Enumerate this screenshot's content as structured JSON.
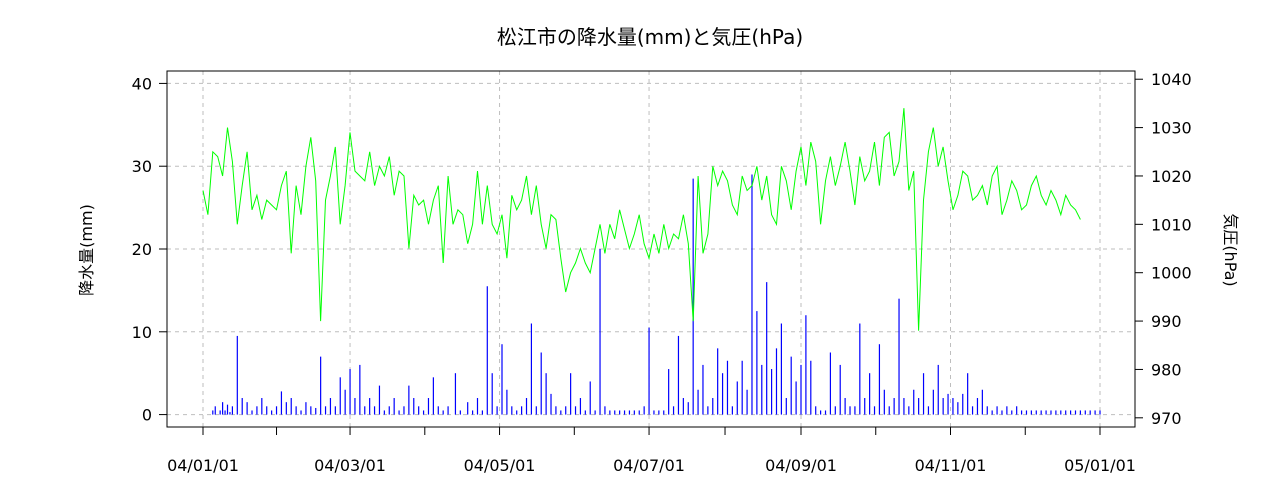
{
  "chart_data": {
    "type": "bar+line",
    "title": "松江市の降水量(mm)と気圧(hPa)",
    "ylabel_left": "降水量(mm)",
    "ylabel_right": "気圧(hPa)",
    "xlabel": "",
    "x_ticks": [
      "04/01/01",
      "04/03/01",
      "04/05/01",
      "04/07/01",
      "04/09/01",
      "04/11/01",
      "05/01/01"
    ],
    "x_range": [
      "2004-01-01",
      "2005-01-01"
    ],
    "y_left_ticks": [
      "0",
      "10",
      "20",
      "30",
      "40"
    ],
    "y_left_range": [
      -1.5,
      41.5
    ],
    "y_right_ticks": [
      "970",
      "980",
      "990",
      "1000",
      "1010",
      "1020",
      "1030",
      "1040"
    ],
    "y_right_range": [
      968.1,
      1041.7
    ],
    "grid": true,
    "colors": {
      "precipitation": "#0000ff",
      "pressure": "#00ff00",
      "grid": "#bebebe",
      "axis": "#000000"
    },
    "series": [
      {
        "type": "bar",
        "axis": "left",
        "day": [
          4,
          5,
          7,
          8,
          9,
          10,
          11,
          12,
          14,
          16,
          18,
          20,
          22,
          24,
          26,
          28,
          30,
          32,
          34,
          36,
          38,
          40,
          42,
          44,
          46,
          48,
          50,
          52,
          54,
          56,
          58,
          60,
          62,
          64,
          66,
          68,
          70,
          72,
          74,
          76,
          78,
          80,
          82,
          84,
          86,
          88,
          90,
          92,
          94,
          96,
          98,
          100,
          103,
          105,
          108,
          110,
          112,
          114,
          116,
          118,
          120,
          122,
          124,
          126,
          128,
          130,
          132,
          134,
          136,
          138,
          140,
          142,
          144,
          146,
          148,
          150,
          152,
          154,
          156,
          158,
          160,
          162,
          164,
          166,
          168,
          170,
          172,
          174,
          176,
          178,
          180,
          182,
          184,
          186,
          188,
          190,
          192,
          194,
          196,
          198,
          200,
          202,
          204,
          206,
          208,
          210,
          212,
          214,
          216,
          218,
          220,
          222,
          224,
          226,
          228,
          230,
          232,
          234,
          236,
          238,
          240,
          242,
          244,
          246,
          248,
          250,
          252,
          254,
          256,
          258,
          260,
          262,
          264,
          266,
          268,
          270,
          272,
          274,
          276,
          278,
          280,
          282,
          284,
          286,
          288,
          290,
          292,
          294,
          296,
          298,
          300,
          302,
          304,
          306,
          308,
          310,
          312,
          314,
          316,
          318,
          320,
          322,
          324,
          326,
          328,
          330,
          332,
          334,
          336,
          338,
          340,
          342,
          344,
          346,
          348,
          350,
          352,
          354,
          356,
          358,
          360,
          362,
          364,
          366
        ],
        "values": [
          0.5,
          1,
          0.5,
          1.5,
          0.5,
          1.2,
          0.3,
          1,
          9.5,
          2,
          1.5,
          0.5,
          1,
          2,
          1,
          0.5,
          1,
          2.8,
          1.5,
          2,
          1,
          0.5,
          1.5,
          1,
          0.8,
          7,
          1,
          2,
          1,
          4.5,
          3,
          5.5,
          2,
          6,
          1,
          2,
          1,
          3.5,
          0.5,
          1,
          2,
          0.5,
          1,
          3.5,
          2,
          1,
          0.5,
          2,
          4.5,
          1,
          0.5,
          1,
          5,
          0.5,
          1.5,
          0.5,
          2,
          0.5,
          15.5,
          5,
          1,
          8.5,
          3,
          1,
          0.5,
          1,
          2,
          11,
          1,
          7.5,
          5,
          2.5,
          1,
          0.5,
          1,
          5,
          1,
          2,
          0.5,
          4,
          0.5,
          20,
          1,
          0.5,
          0.5,
          0.5,
          0.5,
          0.5,
          0.5,
          0.5,
          1,
          10.5,
          0.5,
          0.5,
          0.5,
          5.5,
          1,
          9.5,
          2,
          1.5,
          28.5,
          3,
          6,
          1,
          2,
          8,
          5,
          6.5,
          1,
          4,
          6.5,
          3,
          29,
          12.5,
          6,
          16,
          5.5,
          8,
          11,
          2,
          7,
          4,
          6,
          12,
          6.5,
          1,
          0.5,
          0.5,
          7.5,
          1,
          6,
          2,
          1,
          1,
          11,
          2,
          5,
          1,
          8.5,
          3,
          1,
          2,
          14,
          2,
          1,
          3,
          2,
          5,
          1,
          3,
          6,
          2,
          2.5,
          2,
          1.5,
          2.5,
          5,
          1,
          2,
          3,
          1,
          0.5,
          1,
          0.5,
          1,
          0.5,
          1,
          0.5,
          0.5,
          0.5,
          0.5,
          0.5,
          0.5,
          0.5,
          0.5,
          0.5,
          0.5,
          0.5,
          0.5,
          0.5,
          0.5,
          0.5,
          0.5,
          0.5,
          0.5
        ]
      },
      {
        "type": "line",
        "axis": "right",
        "day": [
          0,
          2,
          4,
          6,
          8,
          10,
          12,
          14,
          16,
          18,
          20,
          22,
          24,
          26,
          28,
          30,
          32,
          34,
          36,
          38,
          40,
          42,
          44,
          46,
          48,
          50,
          52,
          54,
          56,
          58,
          60,
          62,
          64,
          66,
          68,
          70,
          72,
          74,
          76,
          78,
          80,
          82,
          84,
          86,
          88,
          90,
          92,
          94,
          96,
          98,
          100,
          102,
          104,
          106,
          108,
          110,
          112,
          114,
          116,
          118,
          120,
          122,
          124,
          126,
          128,
          130,
          132,
          134,
          136,
          138,
          140,
          142,
          144,
          146,
          148,
          150,
          152,
          154,
          156,
          158,
          160,
          162,
          164,
          166,
          168,
          170,
          172,
          174,
          176,
          178,
          180,
          182,
          184,
          186,
          188,
          190,
          192,
          194,
          196,
          198,
          200,
          202,
          204,
          206,
          208,
          210,
          212,
          214,
          216,
          218,
          220,
          222,
          224,
          226,
          228,
          230,
          232,
          234,
          236,
          238,
          240,
          242,
          244,
          246,
          248,
          250,
          252,
          254,
          256,
          258,
          260,
          262,
          264,
          266,
          268,
          270,
          272,
          274,
          276,
          278,
          280,
          282,
          284,
          286,
          288,
          290,
          292,
          294,
          296,
          298,
          300,
          302,
          304,
          306,
          308,
          310,
          312,
          314,
          316,
          318,
          320,
          322,
          324,
          326,
          328,
          330,
          332,
          334,
          336,
          338,
          340,
          342,
          344,
          346,
          348,
          350,
          352,
          354,
          356,
          358,
          360,
          362,
          364,
          366
        ],
        "values": [
          1017,
          1012,
          1025,
          1024,
          1020,
          1030,
          1023,
          1010,
          1018,
          1025,
          1013,
          1016,
          1011,
          1015,
          1014,
          1013,
          1018,
          1021,
          1004,
          1018,
          1012,
          1022,
          1028,
          1019,
          990,
          1015,
          1020,
          1026,
          1010,
          1018,
          1029,
          1021,
          1020,
          1019,
          1025,
          1018,
          1022,
          1020,
          1024,
          1016,
          1021,
          1020,
          1005,
          1016,
          1014,
          1015,
          1010,
          1015,
          1018,
          1002,
          1020,
          1010,
          1013,
          1012,
          1006,
          1010,
          1021,
          1010,
          1018,
          1010,
          1008,
          1012,
          1003,
          1016,
          1013,
          1015,
          1020,
          1012,
          1018,
          1010,
          1005,
          1012,
          1011,
          1003,
          996,
          1000,
          1002,
          1005,
          1002,
          1000,
          1005,
          1010,
          1004,
          1010,
          1007,
          1013,
          1009,
          1005,
          1008,
          1012,
          1006,
          1003,
          1008,
          1004,
          1010,
          1005,
          1008,
          1007,
          1012,
          1006,
          990,
          1020,
          1004,
          1008,
          1022,
          1018,
          1021,
          1019,
          1014,
          1012,
          1020,
          1017,
          1018,
          1022,
          1015,
          1020,
          1012,
          1010,
          1022,
          1019,
          1013,
          1021,
          1026,
          1018,
          1027,
          1023,
          1010,
          1019,
          1024,
          1018,
          1022,
          1027,
          1021,
          1014,
          1024,
          1019,
          1021,
          1027,
          1018,
          1028,
          1029,
          1020,
          1023,
          1034,
          1017,
          1021,
          988,
          1015,
          1025,
          1030,
          1022,
          1026,
          1019,
          1013,
          1016,
          1021,
          1020,
          1015,
          1016,
          1018,
          1014,
          1020,
          1022,
          1012,
          1015,
          1019,
          1017,
          1013,
          1014,
          1018,
          1020,
          1016,
          1014,
          1017,
          1015,
          1012,
          1016,
          1014,
          1013,
          1011
        ]
      }
    ]
  }
}
